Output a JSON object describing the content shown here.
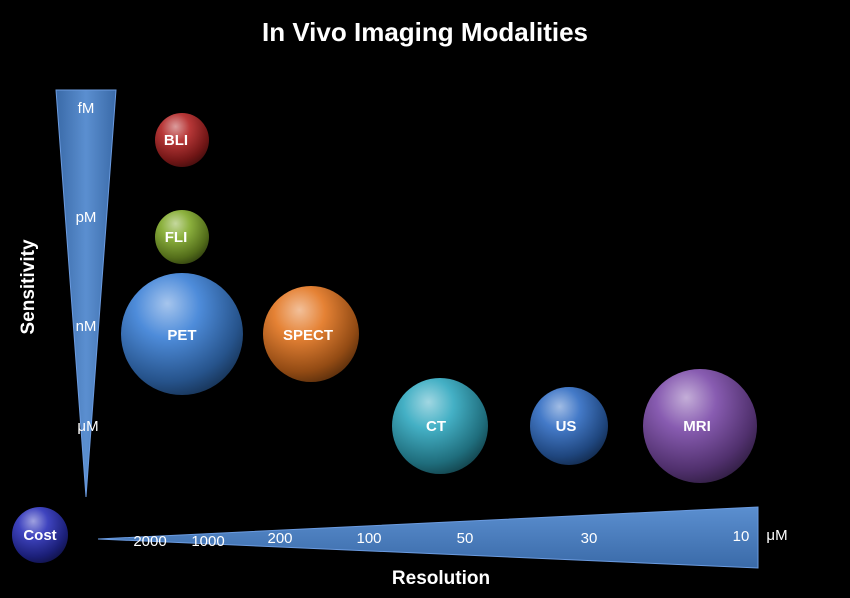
{
  "title": "In Vivo Imaging Modalities",
  "sensitivity_axis": {
    "label": "Sensitivity",
    "ticks": [
      "fM",
      "pM",
      "nM",
      "μM"
    ]
  },
  "resolution_axis": {
    "label": "Resolution",
    "ticks": [
      "2000",
      "1000",
      "200",
      "100",
      "50",
      "30",
      "10"
    ],
    "unit": "μM"
  },
  "cost": {
    "label": "Cost",
    "color": "#2a2fb8"
  },
  "modalities": [
    {
      "label": "BLI",
      "color": "#b02222"
    },
    {
      "label": "FLI",
      "color": "#7fa828"
    },
    {
      "label": "PET",
      "color": "#3a7fd6"
    },
    {
      "label": "SPECT",
      "color": "#e2741e"
    },
    {
      "label": "CT",
      "color": "#2fa7be"
    },
    {
      "label": "US",
      "color": "#2f6bc2"
    },
    {
      "label": "MRI",
      "color": "#7b4aa8"
    }
  ],
  "triangle_color": "#4f81bd"
}
